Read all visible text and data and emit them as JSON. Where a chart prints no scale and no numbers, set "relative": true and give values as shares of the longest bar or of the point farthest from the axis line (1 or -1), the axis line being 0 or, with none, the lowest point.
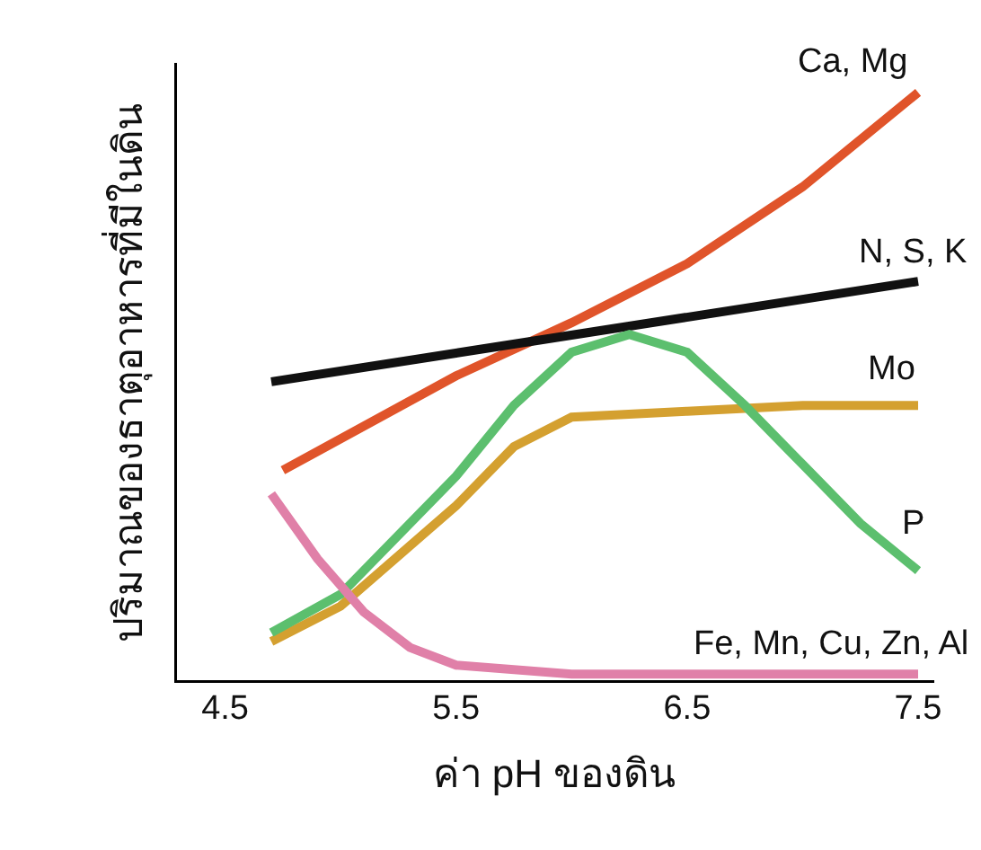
{
  "chart_data": {
    "type": "line",
    "relative": true,
    "xlabel": "ค่า pH ของดิน",
    "ylabel": "ปริมาณของธาตุอาหารที่มีในดิน",
    "xlim": [
      4.28,
      7.57
    ],
    "xticks": [
      4.5,
      5.5,
      6.5,
      7.5
    ],
    "legend": false,
    "marker": "none",
    "line_style": "solid",
    "series": [
      {
        "name": "Ca, Mg",
        "color": "#e0542a",
        "x": [
          4.75,
          5.5,
          6.0,
          6.5,
          7.0,
          7.5
        ],
        "values": [
          0.36,
          0.52,
          0.61,
          0.71,
          0.84,
          1.0
        ]
      },
      {
        "name": "N, S, K",
        "color": "#111111",
        "x": [
          4.7,
          7.5
        ],
        "values": [
          0.51,
          0.68
        ]
      },
      {
        "name": "Mo",
        "color": "#d4a030",
        "x": [
          4.7,
          5.0,
          5.5,
          5.75,
          6.0,
          6.5,
          7.0,
          7.5
        ],
        "values": [
          0.07,
          0.13,
          0.3,
          0.4,
          0.45,
          0.46,
          0.47,
          0.47
        ]
      },
      {
        "name": "P",
        "color": "#5cbf6e",
        "x": [
          4.7,
          5.0,
          5.5,
          5.75,
          6.0,
          6.25,
          6.5,
          6.75,
          7.0,
          7.25,
          7.5
        ],
        "values": [
          0.085,
          0.15,
          0.35,
          0.47,
          0.56,
          0.59,
          0.56,
          0.47,
          0.37,
          0.27,
          0.19
        ]
      },
      {
        "name": "Fe, Mn, Cu, Zn, Al",
        "color": "#e080a8",
        "x": [
          4.7,
          4.9,
          5.1,
          5.3,
          5.5,
          6.0,
          7.5
        ],
        "values": [
          0.32,
          0.21,
          0.12,
          0.06,
          0.03,
          0.015,
          0.015
        ]
      }
    ]
  }
}
